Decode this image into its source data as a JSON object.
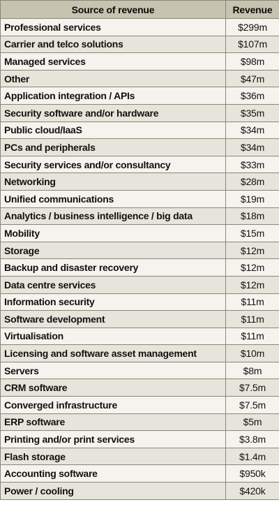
{
  "table": {
    "headers": {
      "source": "Source of revenue",
      "revenue": "Revenue"
    },
    "rows": [
      {
        "source": "Professional services",
        "revenue": "$299m"
      },
      {
        "source": "Carrier and telco solutions",
        "revenue": "$107m"
      },
      {
        "source": "Managed services",
        "revenue": "$98m"
      },
      {
        "source": "Other",
        "revenue": "$47m"
      },
      {
        "source": "Application integration / APIs",
        "revenue": "$36m"
      },
      {
        "source": "Security software and/or hardware",
        "revenue": "$35m"
      },
      {
        "source": "Public cloud/IaaS",
        "revenue": "$34m"
      },
      {
        "source": "PCs and peripherals",
        "revenue": "$34m"
      },
      {
        "source": "Security services and/or consultancy",
        "revenue": "$33m"
      },
      {
        "source": "Networking",
        "revenue": "$28m"
      },
      {
        "source": "Unified communications",
        "revenue": "$19m"
      },
      {
        "source": "Analytics / business intelligence / big data",
        "revenue": "$18m"
      },
      {
        "source": "Mobility",
        "revenue": "$15m"
      },
      {
        "source": "Storage",
        "revenue": "$12m"
      },
      {
        "source": "Backup and disaster recovery",
        "revenue": "$12m"
      },
      {
        "source": "Data centre services",
        "revenue": "$12m"
      },
      {
        "source": "Information security",
        "revenue": "$11m"
      },
      {
        "source": "Software development",
        "revenue": "$11m"
      },
      {
        "source": "Virtualisation",
        "revenue": "$11m"
      },
      {
        "source": "Licensing and software asset management",
        "revenue": "$10m"
      },
      {
        "source": "Servers",
        "revenue": "$8m"
      },
      {
        "source": "CRM software",
        "revenue": "$7.5m"
      },
      {
        "source": "Converged infrastructure",
        "revenue": "$7.5m"
      },
      {
        "source": "ERP software",
        "revenue": "$5m"
      },
      {
        "source": "Printing and/or print services",
        "revenue": "$3.8m"
      },
      {
        "source": "Flash storage",
        "revenue": "$1.4m"
      },
      {
        "source": "Accounting software",
        "revenue": "$950k"
      },
      {
        "source": "Power / cooling",
        "revenue": "$420k"
      }
    ]
  },
  "colors": {
    "header_bg": "#c7c3b1",
    "row_light": "#f4f3ed",
    "row_dark": "#e7e5db",
    "border": "#8a8677"
  }
}
